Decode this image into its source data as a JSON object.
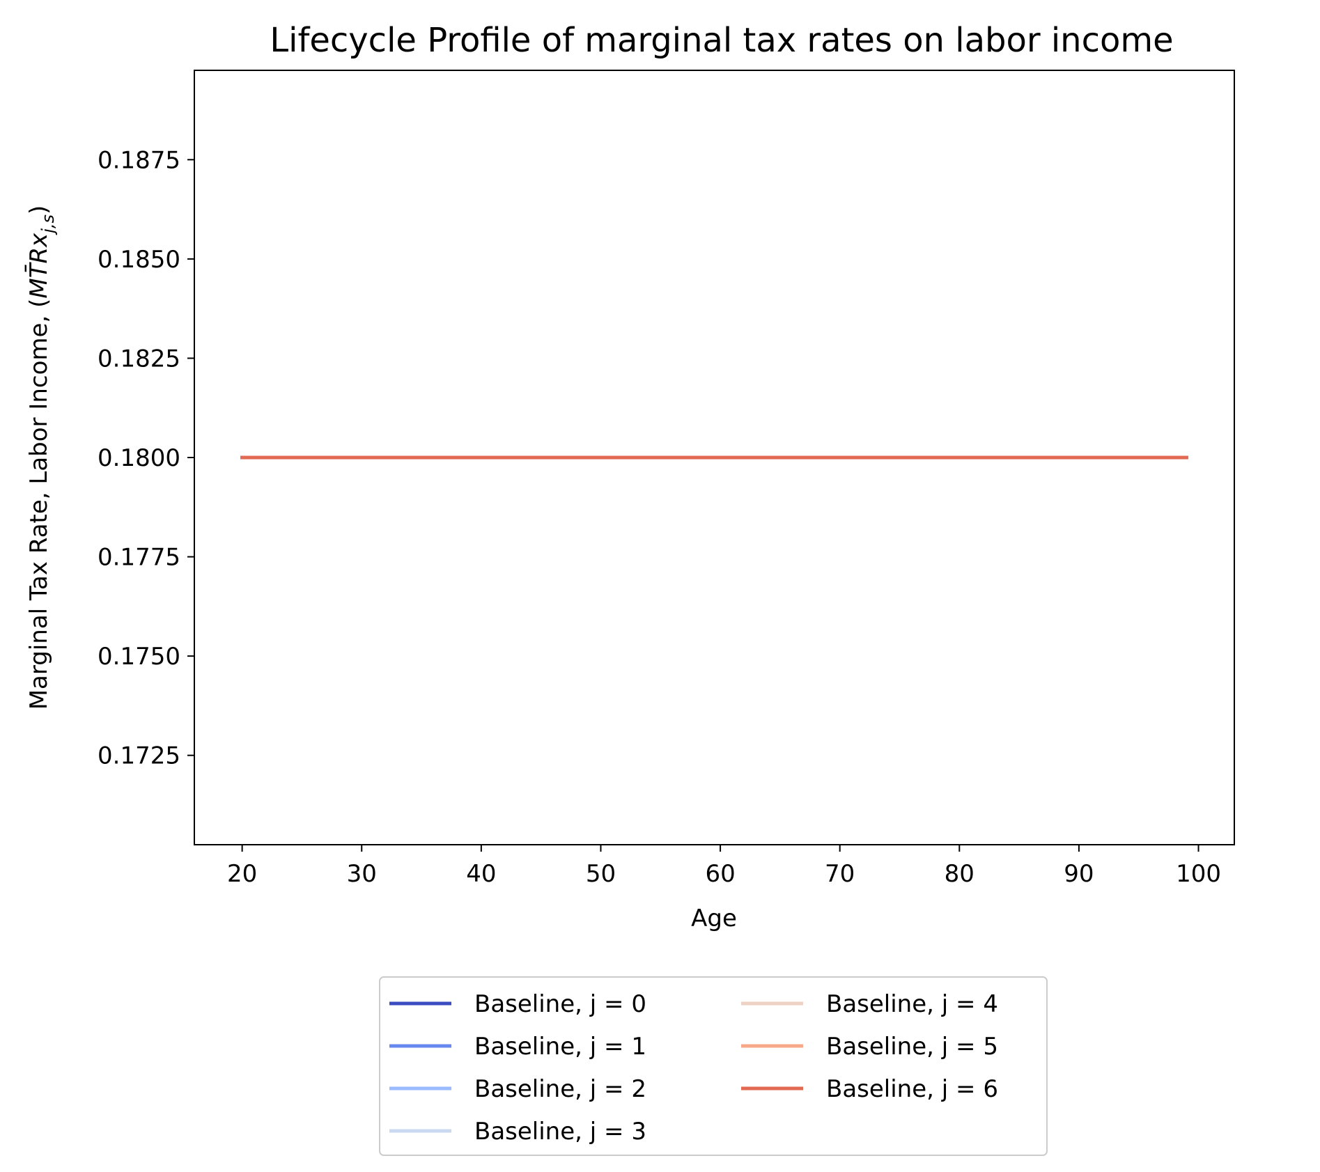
{
  "chart_data": {
    "type": "line",
    "title": "Lifecycle Profile of marginal tax rates on labor income",
    "xlabel": "Age",
    "ylabel": "Marginal Tax Rate, Labor Income",
    "ylabel_math": "MT̄Rx",
    "ylabel_sub": "j,s",
    "xlim": [
      16,
      103
    ],
    "ylim": [
      0.17025,
      0.18975
    ],
    "x_ticks": [
      20,
      30,
      40,
      50,
      60,
      70,
      80,
      90,
      100
    ],
    "x_tick_labels": [
      "20",
      "30",
      "40",
      "50",
      "60",
      "70",
      "80",
      "90",
      "100"
    ],
    "y_ticks": [
      0.1725,
      0.175,
      0.1775,
      0.18,
      0.1825,
      0.185,
      0.1875
    ],
    "y_tick_labels": [
      "0.1725",
      "0.1750",
      "0.1775",
      "0.1800",
      "0.1825",
      "0.1850",
      "0.1875"
    ],
    "grid": false,
    "legend_position": "bottom-center",
    "legend_columns": 2,
    "x": [
      20,
      99
    ],
    "series": [
      {
        "name": "Baseline, j = 0",
        "color": "#3b4cc0",
        "values": [
          0.18,
          0.18
        ]
      },
      {
        "name": "Baseline, j = 1",
        "color": "#6788ee",
        "values": [
          0.18,
          0.18
        ]
      },
      {
        "name": "Baseline, j = 2",
        "color": "#9abbff",
        "values": [
          0.18,
          0.18
        ]
      },
      {
        "name": "Baseline, j = 3",
        "color": "#c9d7f0",
        "values": [
          0.18,
          0.18
        ]
      },
      {
        "name": "Baseline, j = 4",
        "color": "#edd1c2",
        "values": [
          0.18,
          0.18
        ]
      },
      {
        "name": "Baseline, j = 5",
        "color": "#f7a889",
        "values": [
          0.18,
          0.18
        ]
      },
      {
        "name": "Baseline, j = 6",
        "color": "#e26952",
        "values": [
          0.18,
          0.18
        ]
      }
    ]
  }
}
